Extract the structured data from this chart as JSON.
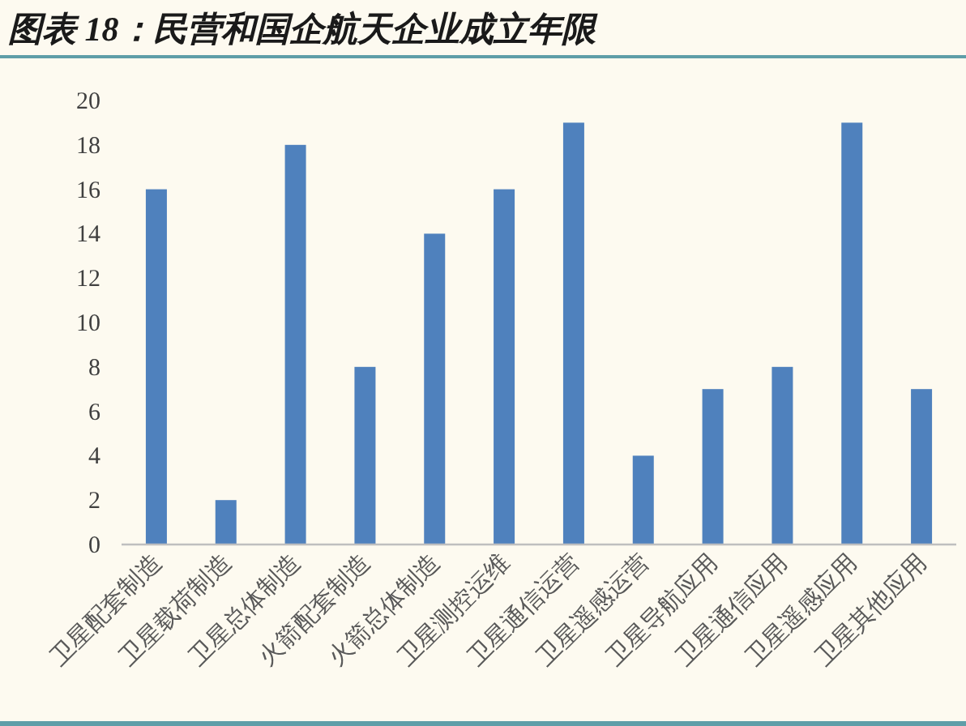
{
  "chart_data": {
    "type": "bar",
    "title": "图表 18：民营和国企航天企业成立年限",
    "categories": [
      "卫星配套制造",
      "卫星载荷制造",
      "卫星总体制造",
      "火箭配套制造",
      "火箭总体制造",
      "卫星测控运维",
      "卫星通信运营",
      "卫星遥感运营",
      "卫星导航应用",
      "卫星通信应用",
      "卫星遥感应用",
      "卫星其他应用"
    ],
    "values": [
      16,
      2,
      18,
      8,
      14,
      16,
      19,
      4,
      7,
      8,
      19,
      7
    ],
    "color": "#4f81bd",
    "ylim": [
      0,
      20
    ],
    "yticks": [
      0,
      2,
      4,
      6,
      8,
      10,
      12,
      14,
      16,
      18,
      20
    ]
  }
}
